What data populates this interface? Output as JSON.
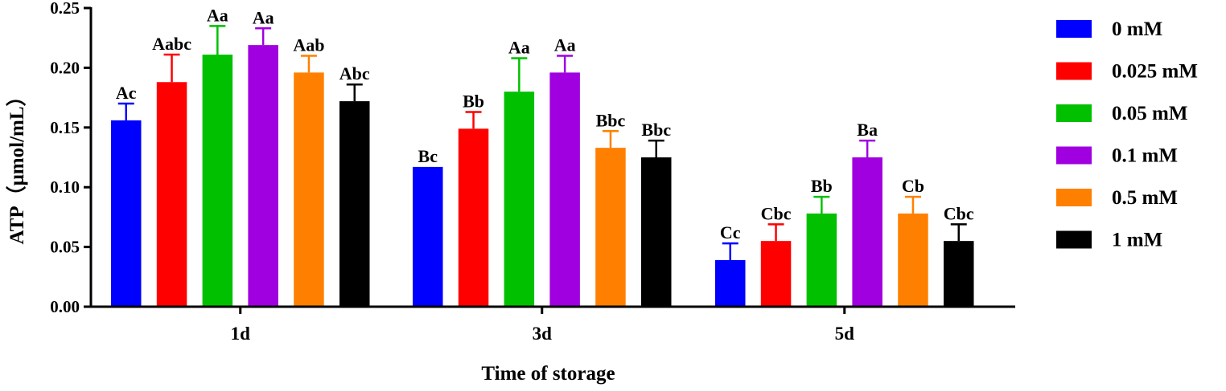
{
  "chart_data": {
    "type": "bar",
    "title": "",
    "xlabel": "Time of storage",
    "ylabel": "ATP（μmol/mL）",
    "ylim": [
      0,
      0.25
    ],
    "yticks": [
      "0.00",
      "0.05",
      "0.10",
      "0.15",
      "0.20",
      "0.25"
    ],
    "categories": [
      "1d",
      "3d",
      "5d"
    ],
    "grid": false,
    "legend_position": "right",
    "series": [
      {
        "name": "0 mM",
        "color": "#0000ff",
        "values": [
          0.156,
          0.117,
          0.039
        ],
        "errors": [
          0.014,
          0.0,
          0.014
        ],
        "labels": [
          "Ac",
          "Bc",
          "Cc"
        ]
      },
      {
        "name": "0.025 mM",
        "color": "#ff0000",
        "values": [
          0.188,
          0.149,
          0.055
        ],
        "errors": [
          0.023,
          0.014,
          0.014
        ],
        "labels": [
          "Aabc",
          "Bb",
          "Cbc"
        ]
      },
      {
        "name": "0.05 mM",
        "color": "#00c000",
        "values": [
          0.211,
          0.18,
          0.078
        ],
        "errors": [
          0.024,
          0.028,
          0.014
        ],
        "labels": [
          "Aa",
          "Aa",
          "Bb"
        ]
      },
      {
        "name": "0.1 mM",
        "color": "#a000e0",
        "values": [
          0.219,
          0.196,
          0.125
        ],
        "errors": [
          0.014,
          0.014,
          0.014
        ],
        "labels": [
          "Aa",
          "Aa",
          "Ba"
        ]
      },
      {
        "name": "0.5 mM",
        "color": "#ff8000",
        "values": [
          0.196,
          0.133,
          0.078
        ],
        "errors": [
          0.014,
          0.014,
          0.014
        ],
        "labels": [
          "Aab",
          "Bbc",
          "Cb"
        ]
      },
      {
        "name": "1 mM",
        "color": "#000000",
        "values": [
          0.172,
          0.125,
          0.055
        ],
        "errors": [
          0.014,
          0.014,
          0.014
        ],
        "labels": [
          "Abc",
          "Bbc",
          "Cbc"
        ]
      }
    ]
  }
}
